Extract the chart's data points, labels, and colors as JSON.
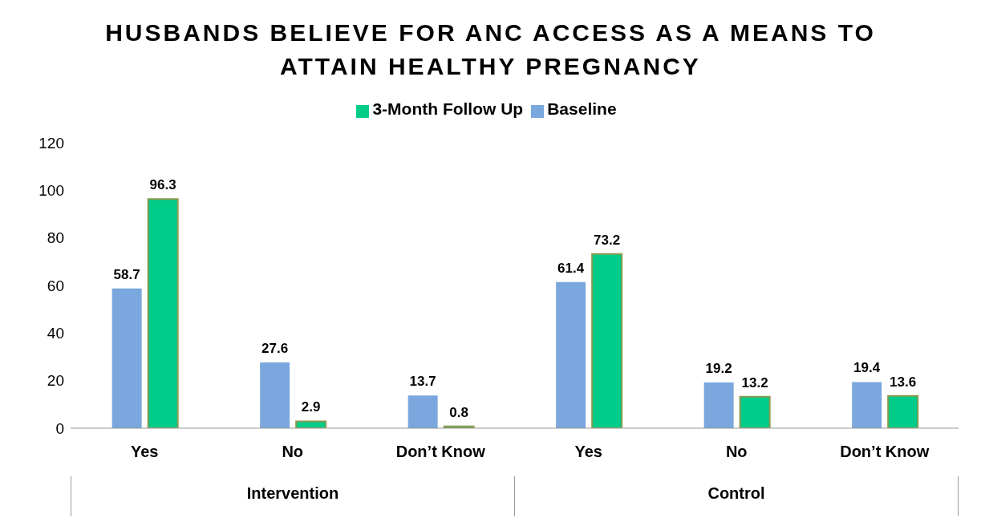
{
  "chart_data": {
    "type": "bar",
    "title": "HUSBANDS BELIEVE FOR ANC ACCESS AS A MEANS TO ATTAIN HEALTHY PREGNANCY",
    "categories": [
      "Yes",
      "No",
      "Don’t Know",
      "Yes",
      "No",
      "Don’t Know"
    ],
    "series": [
      {
        "name": "Baseline",
        "color": "#7aa7dd",
        "values": [
          58.7,
          27.6,
          13.7,
          61.4,
          19.2,
          19.4
        ]
      },
      {
        "name": "3-Month Follow Up",
        "color": "#00cc8a",
        "values": [
          96.3,
          2.9,
          0.8,
          73.2,
          13.2,
          13.6
        ]
      }
    ],
    "annotations": [
      "Intervention",
      "Control"
    ],
    "ylim": [
      0,
      120
    ],
    "yticks": [
      0,
      20,
      40,
      60,
      80,
      100,
      120
    ],
    "grid": false,
    "legend": "top",
    "data_labels": true
  }
}
